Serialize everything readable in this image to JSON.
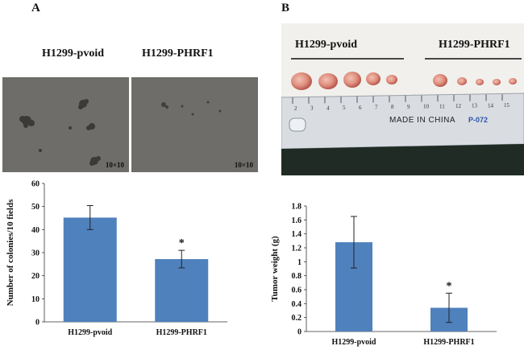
{
  "panels": {
    "A": {
      "letter": "A",
      "labels": [
        "H1299-pvoid",
        "H1299-PHRF1"
      ],
      "magnification": "10×10"
    },
    "B": {
      "letter": "B",
      "labels": [
        "H1299-pvoid",
        "H1299-PHRF1"
      ],
      "ruler_text": "MADE IN CHINA",
      "ruler_code": "P-072",
      "ruler_numbers": [
        "2",
        "3",
        "4",
        "5",
        "6",
        "7",
        "8",
        "9",
        "10",
        "11",
        "12",
        "13",
        "14",
        "15"
      ]
    }
  },
  "chart_data": [
    {
      "type": "bar",
      "categories": [
        "H1299-pvoid",
        "H1299-PHRF1"
      ],
      "values": [
        45.2,
        27.2
      ],
      "errors": [
        5.2,
        3.8
      ],
      "significance": [
        "",
        "*"
      ],
      "title": "",
      "xlabel": "",
      "ylabel": "Number of colonies/10 fields",
      "ylim": [
        0,
        60
      ],
      "yticks": [
        "0",
        "10",
        "20",
        "30",
        "40",
        "50",
        "60"
      ],
      "color": "#4f81bd"
    },
    {
      "type": "bar",
      "categories": [
        "H1299-pvoid",
        "H1299-PHRF1"
      ],
      "values": [
        1.28,
        0.34
      ],
      "errors": [
        0.37,
        0.21
      ],
      "significance": [
        "",
        "*"
      ],
      "title": "",
      "xlabel": "",
      "ylabel": "Tumor weight (g)",
      "ylim": [
        0,
        1.8
      ],
      "yticks": [
        "0",
        "0.2",
        "0.4",
        "0.6",
        "0.8",
        "1",
        "1.2",
        "1.4",
        "1.6",
        "1.8"
      ],
      "color": "#4f81bd"
    }
  ]
}
